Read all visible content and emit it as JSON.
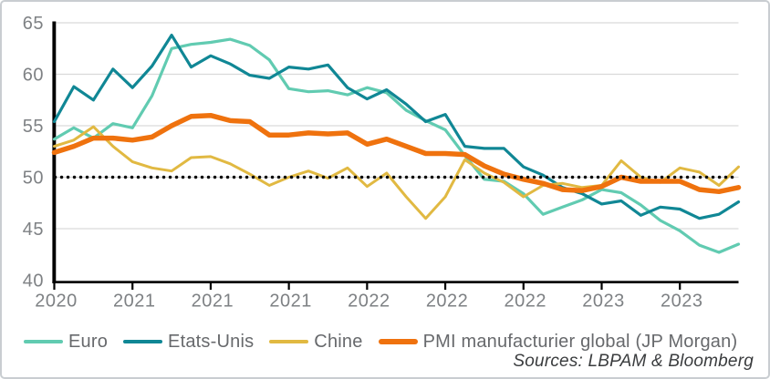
{
  "figure": {
    "background": "#ffffff",
    "border_color": "#c9cdd1"
  },
  "chart_data": {
    "type": "line",
    "title": "",
    "xlabel": "",
    "ylabel": "",
    "ylim": [
      40,
      65
    ],
    "y_ticks": [
      40,
      45,
      50,
      55,
      60,
      65
    ],
    "grid": "horizontal",
    "legend_position": "bottom",
    "axis_color": "#000000",
    "axis_label_color": "#7e8184",
    "grid_color": "#dadada",
    "reference_line": {
      "value": 50,
      "style": "dotted",
      "color": "#0a0a0a"
    },
    "x_tick_labels": [
      "2020",
      "2021",
      "2021",
      "2021",
      "2022",
      "2022",
      "2022",
      "2023",
      "2023"
    ],
    "x_tick_month_indexes": [
      0,
      4,
      8,
      12,
      16,
      20,
      24,
      28,
      32
    ],
    "months": [
      "2020-09",
      "2020-10",
      "2020-11",
      "2020-12",
      "2021-01",
      "2021-02",
      "2021-03",
      "2021-04",
      "2021-05",
      "2021-06",
      "2021-07",
      "2021-08",
      "2021-09",
      "2021-10",
      "2021-11",
      "2021-12",
      "2022-01",
      "2022-02",
      "2022-03",
      "2022-04",
      "2022-05",
      "2022-06",
      "2022-07",
      "2022-08",
      "2022-09",
      "2022-10",
      "2022-11",
      "2022-12",
      "2023-01",
      "2023-02",
      "2023-03",
      "2023-04",
      "2023-05",
      "2023-06",
      "2023-07",
      "2023-08"
    ],
    "series": [
      {
        "name": "Euro",
        "color": "#61cbb1",
        "stroke_width": 3.2,
        "values": [
          53.7,
          54.8,
          53.8,
          55.2,
          54.8,
          57.9,
          62.5,
          62.9,
          63.1,
          63.4,
          62.8,
          61.4,
          58.6,
          58.3,
          58.4,
          58.0,
          58.7,
          58.2,
          56.5,
          55.5,
          54.6,
          52.1,
          49.8,
          49.6,
          48.4,
          46.4,
          47.1,
          47.8,
          48.8,
          48.5,
          47.3,
          45.8,
          44.8,
          43.4,
          42.7,
          43.5
        ]
      },
      {
        "name": "Etats-Unis",
        "color": "#108795",
        "stroke_width": 3.2,
        "values": [
          55.4,
          58.8,
          57.5,
          60.5,
          58.7,
          60.8,
          63.8,
          60.7,
          61.8,
          61.0,
          59.9,
          59.6,
          60.7,
          60.5,
          60.9,
          58.7,
          57.6,
          58.5,
          57.1,
          55.4,
          56.1,
          53.0,
          52.8,
          52.8,
          51.0,
          50.2,
          49.0,
          48.4,
          47.4,
          47.7,
          46.3,
          47.1,
          46.9,
          46.0,
          46.4,
          47.6
        ]
      },
      {
        "name": "Chine",
        "color": "#e1b942",
        "stroke_width": 3.0,
        "values": [
          53.0,
          53.6,
          54.9,
          53.0,
          51.5,
          50.9,
          50.6,
          51.9,
          52.0,
          51.3,
          50.3,
          49.2,
          50.0,
          50.6,
          49.9,
          50.9,
          49.1,
          50.4,
          48.1,
          46.0,
          48.1,
          51.7,
          50.4,
          49.5,
          48.1,
          49.2,
          49.4,
          49.0,
          49.2,
          51.6,
          50.0,
          49.5,
          50.9,
          50.5,
          49.2,
          51.0
        ]
      },
      {
        "name": "PMI manufacturier global (JP Morgan)",
        "color": "#ef720e",
        "stroke_width": 5.5,
        "values": [
          52.4,
          53.0,
          53.8,
          53.8,
          53.6,
          53.9,
          55.0,
          55.9,
          56.0,
          55.5,
          55.4,
          54.1,
          54.1,
          54.3,
          54.2,
          54.3,
          53.2,
          53.7,
          53.0,
          52.3,
          52.3,
          52.2,
          51.1,
          50.3,
          49.8,
          49.4,
          48.8,
          48.7,
          49.1,
          50.0,
          49.6,
          49.6,
          49.6,
          48.8,
          48.6,
          49.0
        ]
      }
    ],
    "source_note": "Sources: LBPAM & Bloomberg"
  },
  "legend": {
    "text_color": "#67696c"
  }
}
